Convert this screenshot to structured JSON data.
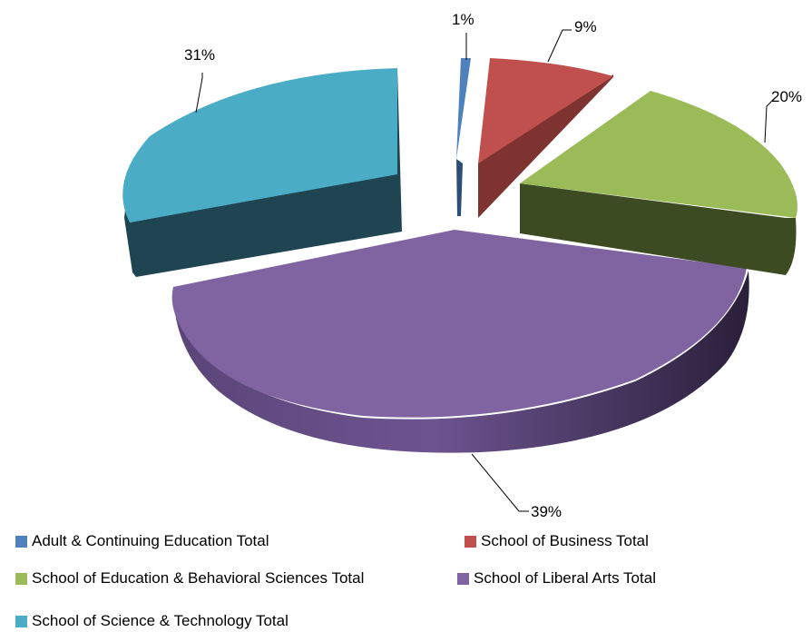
{
  "chart_data": {
    "type": "pie",
    "style": "3d-exploded",
    "slices": [
      {
        "label": "Adult & Continuing Education  Total",
        "value": 1,
        "value_label": "1%",
        "color": "#4F81BD",
        "side_color": "#2C4D75"
      },
      {
        "label": "School of Business Total",
        "value": 9,
        "value_label": "9%",
        "color": "#C0504D",
        "side_color": "#7F3330"
      },
      {
        "label": "School of Education & Behavioral Sciences Total",
        "value": 20,
        "value_label": "20%",
        "color": "#9BBB59",
        "side_color": "#3D4B22"
      },
      {
        "label": "School of Liberal Arts Total",
        "value": 39,
        "value_label": "39%",
        "color": "#8064A2",
        "side_color": "#3F2F55"
      },
      {
        "label": "School of Science & Technology Total",
        "value": 31,
        "value_label": "31%",
        "color": "#4BACC6",
        "side_color": "#1F4553"
      }
    ],
    "legend_position": "bottom"
  }
}
